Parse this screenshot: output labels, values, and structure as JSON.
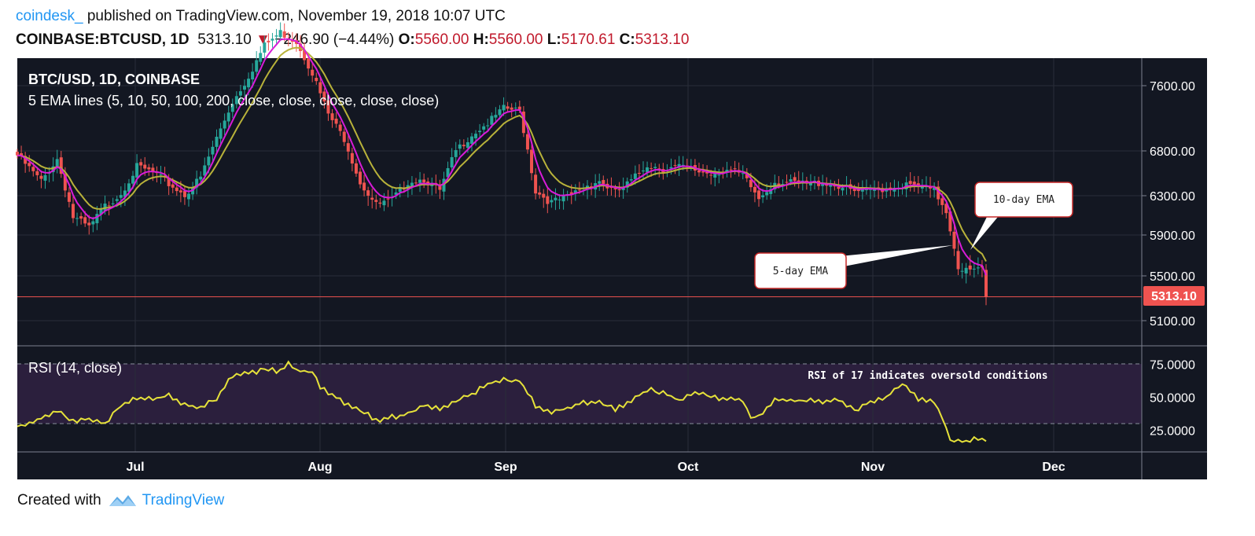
{
  "header": {
    "author": "coindesk_",
    "published": " published on TradingView.com, November 19, 2018 10:07 UTC",
    "symbol": "COINBASE:BTCUSD, 1D",
    "price": "5313.10",
    "change": "−246.90 (−4.44%)",
    "o_label": "O:",
    "o_val": "5560.00",
    "h_label": "H:",
    "h_val": "5560.00",
    "l_label": "L:",
    "l_val": "5170.61",
    "c_label": "C:",
    "c_val": "5313.10"
  },
  "footer": {
    "created": "Created with",
    "brand": "TradingView"
  },
  "colors": {
    "up": "#26a69a",
    "down": "#ef5350",
    "ema5": "#d81bd8",
    "ema10": "#b8b23a",
    "rsi": "#e6e23a",
    "bg": "#131722",
    "rsi_band": "#2b1f3d"
  },
  "chart_data": {
    "type": "candlestick",
    "title": "BTC/USD, 1D, COINBASE",
    "subtitle": "5 EMA lines (5, 10, 50, 100, 200, close, close, close, close, close)",
    "x_labels": [
      "Jul",
      "Aug",
      "Sep",
      "Oct",
      "Nov",
      "Dec"
    ],
    "y_ticks": [
      "7600.00",
      "6800.00",
      "6300.00",
      "5900.00",
      "5500.00",
      "5100.00"
    ],
    "last_price_label": "5313.10",
    "close_anchors": [
      [
        0,
        6750
      ],
      [
        6,
        6460
      ],
      [
        10,
        6710
      ],
      [
        14,
        6080
      ],
      [
        18,
        5970
      ],
      [
        22,
        6190
      ],
      [
        26,
        6330
      ],
      [
        30,
        6620
      ],
      [
        34,
        6560
      ],
      [
        38,
        6430
      ],
      [
        42,
        6310
      ],
      [
        46,
        6500
      ],
      [
        50,
        6960
      ],
      [
        54,
        7400
      ],
      [
        58,
        7710
      ],
      [
        62,
        8050
      ],
      [
        66,
        8200
      ],
      [
        70,
        8100
      ],
      [
        74,
        7750
      ],
      [
        78,
        7250
      ],
      [
        82,
        6950
      ],
      [
        86,
        6450
      ],
      [
        90,
        6200
      ],
      [
        94,
        6250
      ],
      [
        98,
        6460
      ],
      [
        102,
        6490
      ],
      [
        106,
        6350
      ],
      [
        110,
        6800
      ],
      [
        114,
        7000
      ],
      [
        118,
        7140
      ],
      [
        122,
        7320
      ],
      [
        126,
        7290
      ],
      [
        130,
        6350
      ],
      [
        134,
        6230
      ],
      [
        138,
        6280
      ],
      [
        142,
        6400
      ],
      [
        146,
        6470
      ],
      [
        150,
        6330
      ],
      [
        154,
        6460
      ],
      [
        158,
        6650
      ],
      [
        162,
        6600
      ],
      [
        166,
        6620
      ],
      [
        170,
        6580
      ],
      [
        174,
        6550
      ],
      [
        178,
        6590
      ],
      [
        182,
        6520
      ],
      [
        186,
        6270
      ],
      [
        190,
        6460
      ],
      [
        194,
        6440
      ],
      [
        198,
        6430
      ],
      [
        202,
        6450
      ],
      [
        206,
        6410
      ],
      [
        210,
        6340
      ],
      [
        214,
        6350
      ],
      [
        218,
        6390
      ],
      [
        222,
        6420
      ],
      [
        226,
        6400
      ],
      [
        230,
        6350
      ],
      [
        233,
        6150
      ],
      [
        236,
        5600
      ],
      [
        238,
        5550
      ],
      [
        240,
        5540
      ],
      [
        242,
        5560
      ],
      [
        243,
        5313
      ]
    ],
    "ema5_label": "5-day EMA",
    "ema10_label": "10-day EMA",
    "rsi": {
      "title": "RSI (14, close)",
      "y_ticks": [
        "75.0000",
        "50.0000",
        "25.0000"
      ],
      "upper": 70,
      "lower": 30,
      "annotation": "RSI of 17 indicates oversold conditions",
      "anchors": [
        [
          0,
          28
        ],
        [
          6,
          34
        ],
        [
          10,
          40
        ],
        [
          14,
          32
        ],
        [
          18,
          34
        ],
        [
          22,
          30
        ],
        [
          26,
          44
        ],
        [
          30,
          50
        ],
        [
          34,
          49
        ],
        [
          38,
          51
        ],
        [
          42,
          44
        ],
        [
          46,
          43
        ],
        [
          50,
          49
        ],
        [
          54,
          67
        ],
        [
          58,
          68
        ],
        [
          62,
          71
        ],
        [
          66,
          70
        ],
        [
          68,
          75
        ],
        [
          70,
          70
        ],
        [
          74,
          69
        ],
        [
          76,
          57
        ],
        [
          80,
          50
        ],
        [
          84,
          42
        ],
        [
          88,
          38
        ],
        [
          90,
          32
        ],
        [
          94,
          35
        ],
        [
          98,
          37
        ],
        [
          102,
          44
        ],
        [
          106,
          41
        ],
        [
          110,
          47
        ],
        [
          114,
          52
        ],
        [
          118,
          60
        ],
        [
          122,
          63
        ],
        [
          126,
          63
        ],
        [
          130,
          44
        ],
        [
          134,
          38
        ],
        [
          138,
          42
        ],
        [
          142,
          46
        ],
        [
          146,
          46
        ],
        [
          150,
          41
        ],
        [
          154,
          47
        ],
        [
          158,
          56
        ],
        [
          162,
          53
        ],
        [
          166,
          48
        ],
        [
          170,
          54
        ],
        [
          174,
          50
        ],
        [
          178,
          49
        ],
        [
          182,
          48
        ],
        [
          184,
          35
        ],
        [
          186,
          35
        ],
        [
          190,
          49
        ],
        [
          194,
          47
        ],
        [
          198,
          48
        ],
        [
          202,
          47
        ],
        [
          206,
          48
        ],
        [
          210,
          40
        ],
        [
          214,
          47
        ],
        [
          218,
          50
        ],
        [
          220,
          56
        ],
        [
          222,
          60
        ],
        [
          226,
          49
        ],
        [
          230,
          46
        ],
        [
          232,
          35
        ],
        [
          234,
          18
        ],
        [
          238,
          16
        ],
        [
          240,
          19
        ],
        [
          242,
          17
        ],
        [
          243,
          17
        ]
      ]
    }
  }
}
